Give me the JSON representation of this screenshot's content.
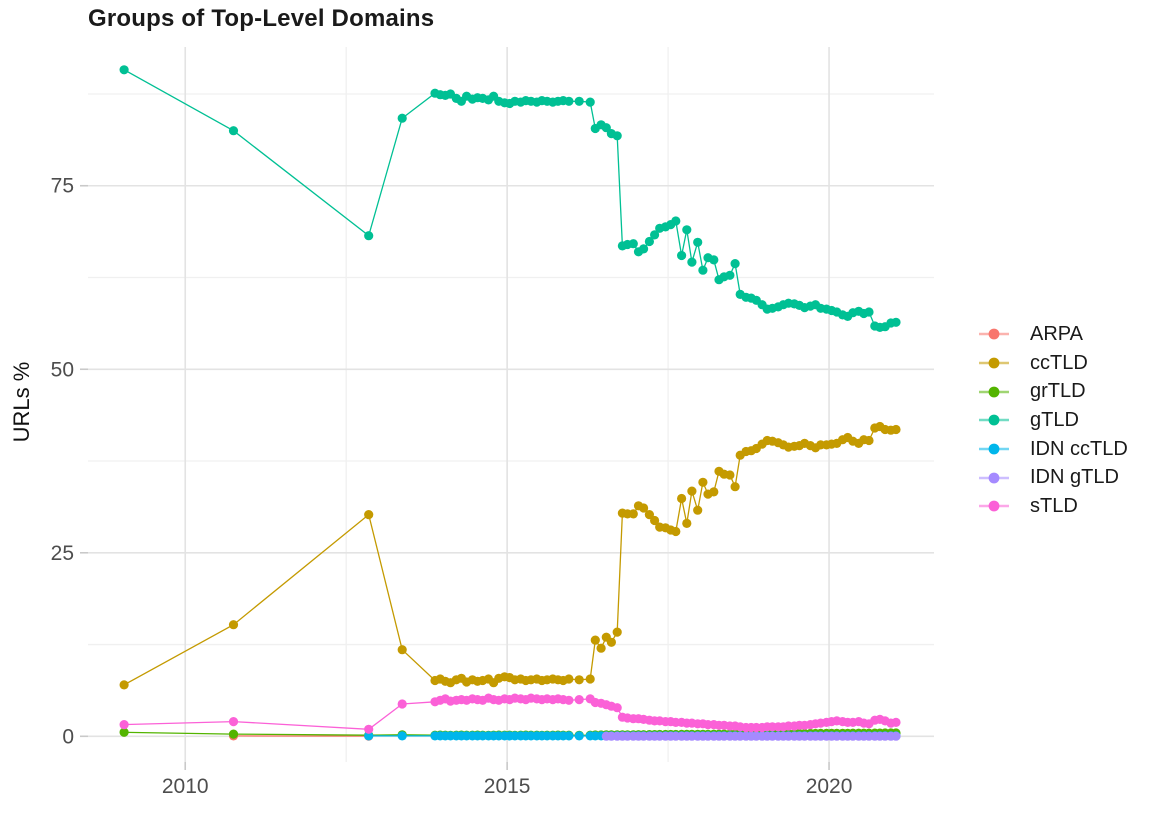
{
  "chart_data": {
    "type": "line",
    "title": "Groups of Top-Level Domains",
    "xlabel": "",
    "ylabel": "URLs %",
    "xlim": [
      2008.49,
      2021.63
    ],
    "ylim": [
      -3.5,
      93.9
    ],
    "x_ticks": [
      2010,
      2015,
      2020
    ],
    "x_tick_labels": [
      "2010",
      "2015",
      "2020"
    ],
    "y_ticks": [
      0,
      25,
      50,
      75
    ],
    "y_tick_labels": [
      "0",
      "25",
      "50",
      "75"
    ],
    "x_minor_gridlines": [
      2012.5,
      2017.5
    ],
    "y_minor_gridlines": [
      12.5,
      37.5,
      62.5,
      87.5
    ],
    "grid": true,
    "legend_position": "right",
    "series": [
      {
        "name": "ARPA",
        "color": "#F8766D",
        "x": [
          2010.75,
          2012.85
        ],
        "y": [
          0.05,
          0.03
        ]
      },
      {
        "name": "ccTLD",
        "color": "#C49A00",
        "x": [
          2009.05,
          2010.75,
          2012.85,
          2013.37,
          2013.88,
          2013.96,
          2014.04,
          2014.12,
          2014.21,
          2014.29,
          2014.37,
          2014.46,
          2014.54,
          2014.62,
          2014.71,
          2014.79,
          2014.87,
          2014.96,
          2015.04,
          2015.12,
          2015.21,
          2015.29,
          2015.37,
          2015.46,
          2015.54,
          2015.62,
          2015.71,
          2015.79,
          2015.87,
          2015.96,
          2016.12,
          2016.29,
          2016.37,
          2016.46,
          2016.54,
          2016.62,
          2016.71,
          2016.79,
          2016.87,
          2016.96,
          2017.04,
          2017.12,
          2017.21,
          2017.29,
          2017.37,
          2017.46,
          2017.54,
          2017.62,
          2017.71,
          2017.79,
          2017.87,
          2017.96,
          2018.04,
          2018.12,
          2018.21,
          2018.29,
          2018.37,
          2018.46,
          2018.54,
          2018.62,
          2018.71,
          2018.79,
          2018.87,
          2018.96,
          2019.04,
          2019.12,
          2019.21,
          2019.29,
          2019.37,
          2019.46,
          2019.54,
          2019.62,
          2019.71,
          2019.79,
          2019.87,
          2019.96,
          2020.04,
          2020.12,
          2020.21,
          2020.29,
          2020.37,
          2020.46,
          2020.54,
          2020.62,
          2020.71,
          2020.79,
          2020.87,
          2020.96,
          2021.04
        ],
        "y": [
          7.0,
          15.2,
          30.2,
          11.8,
          7.6,
          7.8,
          7.5,
          7.3,
          7.7,
          7.9,
          7.4,
          7.7,
          7.5,
          7.6,
          7.8,
          7.3,
          7.9,
          8.1,
          8.0,
          7.7,
          7.8,
          7.6,
          7.7,
          7.8,
          7.6,
          7.7,
          7.8,
          7.7,
          7.6,
          7.8,
          7.7,
          7.8,
          13.1,
          12.0,
          13.5,
          12.8,
          14.2,
          30.4,
          30.3,
          30.3,
          31.4,
          31.1,
          30.2,
          29.4,
          28.5,
          28.4,
          28.1,
          27.9,
          32.4,
          29.0,
          33.4,
          30.8,
          34.6,
          33.0,
          33.3,
          36.1,
          35.7,
          35.6,
          34.0,
          38.3,
          38.8,
          38.9,
          39.2,
          39.8,
          40.3,
          40.2,
          40.0,
          39.7,
          39.4,
          39.5,
          39.6,
          39.9,
          39.6,
          39.3,
          39.7,
          39.7,
          39.8,
          39.9,
          40.4,
          40.7,
          40.2,
          39.9,
          40.4,
          40.3,
          42.0,
          42.2,
          41.8,
          41.7,
          41.8
        ]
      },
      {
        "name": "grTLD",
        "color": "#53B400",
        "x": [
          2009.05,
          2010.75,
          2012.85,
          2013.37,
          2013.88,
          2013.96,
          2014.04,
          2014.12,
          2014.21,
          2014.29,
          2014.37,
          2014.46,
          2014.54,
          2014.62,
          2014.71,
          2014.79,
          2014.87,
          2014.96,
          2015.04,
          2015.12,
          2015.21,
          2015.29,
          2015.37,
          2015.46,
          2015.54,
          2015.62,
          2015.71,
          2015.79,
          2015.87,
          2015.96,
          2016.12,
          2016.29,
          2016.37,
          2016.46,
          2016.54,
          2016.62,
          2016.71,
          2016.79,
          2016.87,
          2016.96,
          2017.04,
          2017.12,
          2017.21,
          2017.29,
          2017.37,
          2017.46,
          2017.54,
          2017.62,
          2017.71,
          2017.79,
          2017.87,
          2017.96,
          2018.04,
          2018.12,
          2018.21,
          2018.29,
          2018.37,
          2018.46,
          2018.54,
          2018.62,
          2018.71,
          2018.79,
          2018.87,
          2018.96,
          2019.04,
          2019.12,
          2019.21,
          2019.29,
          2019.37,
          2019.46,
          2019.54,
          2019.62,
          2019.71,
          2019.79,
          2019.87,
          2019.96,
          2020.04,
          2020.12,
          2020.21,
          2020.29,
          2020.37,
          2020.46,
          2020.54,
          2020.62,
          2020.71,
          2020.79,
          2020.87,
          2020.96,
          2021.04
        ],
        "y": [
          0.55,
          0.3,
          0.15,
          0.2,
          0.15,
          0.16,
          0.15,
          0.14,
          0.15,
          0.16,
          0.15,
          0.15,
          0.16,
          0.15,
          0.14,
          0.15,
          0.16,
          0.15,
          0.15,
          0.14,
          0.15,
          0.16,
          0.15,
          0.15,
          0.14,
          0.15,
          0.15,
          0.16,
          0.15,
          0.15,
          0.14,
          0.15,
          0.18,
          0.18,
          0.19,
          0.2,
          0.2,
          0.2,
          0.21,
          0.21,
          0.22,
          0.22,
          0.23,
          0.23,
          0.24,
          0.24,
          0.25,
          0.25,
          0.26,
          0.26,
          0.27,
          0.27,
          0.28,
          0.28,
          0.29,
          0.29,
          0.3,
          0.3,
          0.31,
          0.31,
          0.32,
          0.32,
          0.33,
          0.33,
          0.34,
          0.34,
          0.35,
          0.35,
          0.36,
          0.36,
          0.37,
          0.37,
          0.38,
          0.38,
          0.39,
          0.39,
          0.4,
          0.4,
          0.41,
          0.41,
          0.42,
          0.42,
          0.43,
          0.43,
          0.44,
          0.44,
          0.45,
          0.45,
          0.45
        ]
      },
      {
        "name": "gTLD",
        "color": "#00C094",
        "x": [
          2009.05,
          2010.75,
          2012.85,
          2013.37,
          2013.88,
          2013.96,
          2014.04,
          2014.12,
          2014.21,
          2014.29,
          2014.37,
          2014.46,
          2014.54,
          2014.62,
          2014.71,
          2014.79,
          2014.87,
          2014.96,
          2015.04,
          2015.12,
          2015.21,
          2015.29,
          2015.37,
          2015.46,
          2015.54,
          2015.62,
          2015.71,
          2015.79,
          2015.87,
          2015.96,
          2016.12,
          2016.29,
          2016.37,
          2016.46,
          2016.54,
          2016.62,
          2016.71,
          2016.79,
          2016.87,
          2016.96,
          2017.04,
          2017.12,
          2017.21,
          2017.29,
          2017.37,
          2017.46,
          2017.54,
          2017.62,
          2017.71,
          2017.79,
          2017.87,
          2017.96,
          2018.04,
          2018.12,
          2018.21,
          2018.29,
          2018.37,
          2018.46,
          2018.54,
          2018.62,
          2018.71,
          2018.79,
          2018.87,
          2018.96,
          2019.04,
          2019.12,
          2019.21,
          2019.29,
          2019.37,
          2019.46,
          2019.54,
          2019.62,
          2019.71,
          2019.79,
          2019.87,
          2019.96,
          2020.04,
          2020.12,
          2020.21,
          2020.29,
          2020.37,
          2020.46,
          2020.54,
          2020.62,
          2020.71,
          2020.79,
          2020.87,
          2020.96,
          2021.04
        ],
        "y": [
          90.8,
          82.5,
          68.2,
          84.2,
          87.6,
          87.4,
          87.3,
          87.5,
          86.9,
          86.5,
          87.2,
          86.8,
          87.0,
          86.9,
          86.7,
          87.2,
          86.5,
          86.3,
          86.2,
          86.5,
          86.4,
          86.6,
          86.5,
          86.4,
          86.6,
          86.5,
          86.4,
          86.5,
          86.6,
          86.5,
          86.5,
          86.4,
          82.8,
          83.3,
          82.9,
          82.1,
          81.8,
          66.8,
          67.0,
          67.1,
          66.0,
          66.4,
          67.4,
          68.3,
          69.2,
          69.4,
          69.7,
          70.2,
          65.5,
          69.0,
          64.6,
          67.3,
          63.5,
          65.2,
          64.9,
          62.2,
          62.6,
          62.8,
          64.4,
          60.2,
          59.8,
          59.7,
          59.4,
          58.8,
          58.2,
          58.3,
          58.5,
          58.8,
          59.0,
          58.9,
          58.7,
          58.4,
          58.6,
          58.8,
          58.3,
          58.2,
          58.0,
          57.8,
          57.4,
          57.2,
          57.7,
          57.9,
          57.6,
          57.8,
          55.9,
          55.7,
          55.8,
          56.3,
          56.4
        ]
      },
      {
        "name": "IDN ccTLD",
        "color": "#00B6EB",
        "x": [
          2012.85,
          2013.37,
          2013.88,
          2013.96,
          2014.04,
          2014.12,
          2014.21,
          2014.29,
          2014.37,
          2014.46,
          2014.54,
          2014.62,
          2014.71,
          2014.79,
          2014.87,
          2014.96,
          2015.04,
          2015.12,
          2015.21,
          2015.29,
          2015.37,
          2015.46,
          2015.54,
          2015.62,
          2015.71,
          2015.79,
          2015.87,
          2015.96,
          2016.12,
          2016.29,
          2016.37,
          2016.46,
          2016.54,
          2016.62,
          2016.71,
          2016.79,
          2016.87,
          2016.96,
          2017.04,
          2017.12,
          2017.21,
          2017.29,
          2017.37,
          2017.46,
          2017.54,
          2017.62,
          2017.71,
          2017.79,
          2017.87,
          2017.96,
          2018.04,
          2018.12,
          2018.21,
          2018.29,
          2018.37,
          2018.46,
          2018.54,
          2018.62,
          2018.71,
          2018.79,
          2018.87,
          2018.96,
          2019.04,
          2019.12,
          2019.21,
          2019.29,
          2019.37,
          2019.46,
          2019.54,
          2019.62,
          2019.71,
          2019.79,
          2019.87,
          2019.96,
          2020.04,
          2020.12,
          2020.21,
          2020.29,
          2020.37,
          2020.46,
          2020.54,
          2020.62,
          2020.71,
          2020.79,
          2020.87,
          2020.96,
          2021.04
        ],
        "y_const": 0.05
      },
      {
        "name": "IDN gTLD",
        "color": "#A58AFF",
        "x": [
          2016.54,
          2016.62,
          2016.71,
          2016.79,
          2016.87,
          2016.96,
          2017.04,
          2017.12,
          2017.21,
          2017.29,
          2017.37,
          2017.46,
          2017.54,
          2017.62,
          2017.71,
          2017.79,
          2017.87,
          2017.96,
          2018.04,
          2018.12,
          2018.21,
          2018.29,
          2018.37,
          2018.46,
          2018.54,
          2018.62,
          2018.71,
          2018.79,
          2018.87,
          2018.96,
          2019.04,
          2019.12,
          2019.21,
          2019.29,
          2019.37,
          2019.46,
          2019.54,
          2019.62,
          2019.71,
          2019.79,
          2019.87,
          2019.96,
          2020.04,
          2020.12,
          2020.21,
          2020.29,
          2020.37,
          2020.46,
          2020.54,
          2020.62,
          2020.71,
          2020.79,
          2020.87,
          2020.96,
          2021.04
        ],
        "y_const": 0.02
      },
      {
        "name": "sTLD",
        "color": "#FB61D7",
        "x": [
          2009.05,
          2010.75,
          2012.85,
          2013.37,
          2013.88,
          2013.96,
          2014.04,
          2014.12,
          2014.21,
          2014.29,
          2014.37,
          2014.46,
          2014.54,
          2014.62,
          2014.71,
          2014.79,
          2014.87,
          2014.96,
          2015.04,
          2015.12,
          2015.21,
          2015.29,
          2015.37,
          2015.46,
          2015.54,
          2015.62,
          2015.71,
          2015.79,
          2015.87,
          2015.96,
          2016.12,
          2016.29,
          2016.37,
          2016.46,
          2016.54,
          2016.62,
          2016.71,
          2016.79,
          2016.87,
          2016.96,
          2017.04,
          2017.12,
          2017.21,
          2017.29,
          2017.37,
          2017.46,
          2017.54,
          2017.62,
          2017.71,
          2017.79,
          2017.87,
          2017.96,
          2018.04,
          2018.12,
          2018.21,
          2018.29,
          2018.37,
          2018.46,
          2018.54,
          2018.62,
          2018.71,
          2018.79,
          2018.87,
          2018.96,
          2019.04,
          2019.12,
          2019.21,
          2019.29,
          2019.37,
          2019.46,
          2019.54,
          2019.62,
          2019.71,
          2019.79,
          2019.87,
          2019.96,
          2020.04,
          2020.12,
          2020.21,
          2020.29,
          2020.37,
          2020.46,
          2020.54,
          2020.62,
          2020.71,
          2020.79,
          2020.87,
          2020.96,
          2021.04
        ],
        "y": [
          1.6,
          2.0,
          0.95,
          4.4,
          4.7,
          4.9,
          5.1,
          4.8,
          4.9,
          5.0,
          4.9,
          5.1,
          5.0,
          4.9,
          5.2,
          5.0,
          4.9,
          5.1,
          5.0,
          5.2,
          5.1,
          5.0,
          5.2,
          5.1,
          5.0,
          5.1,
          5.0,
          5.1,
          5.0,
          4.9,
          5.0,
          5.1,
          4.6,
          4.5,
          4.3,
          4.1,
          3.9,
          2.6,
          2.5,
          2.4,
          2.4,
          2.3,
          2.2,
          2.1,
          2.1,
          2.0,
          2.0,
          1.9,
          1.9,
          1.8,
          1.8,
          1.7,
          1.7,
          1.6,
          1.6,
          1.5,
          1.5,
          1.4,
          1.4,
          1.3,
          1.2,
          1.2,
          1.2,
          1.2,
          1.3,
          1.3,
          1.3,
          1.3,
          1.4,
          1.4,
          1.5,
          1.5,
          1.6,
          1.7,
          1.8,
          1.9,
          2.0,
          2.1,
          2.0,
          1.9,
          1.9,
          2.0,
          1.8,
          1.7,
          2.2,
          2.3,
          2.1,
          1.8,
          1.9
        ]
      }
    ],
    "style": {
      "major_grid_color": "#e3e3e3",
      "minor_grid_color": "#f0f0f0",
      "tick_color": "#c9c9c9",
      "axis_text_color": "#4d4d4d",
      "title_color": "#1a1a1a",
      "background": "#ffffff"
    }
  }
}
